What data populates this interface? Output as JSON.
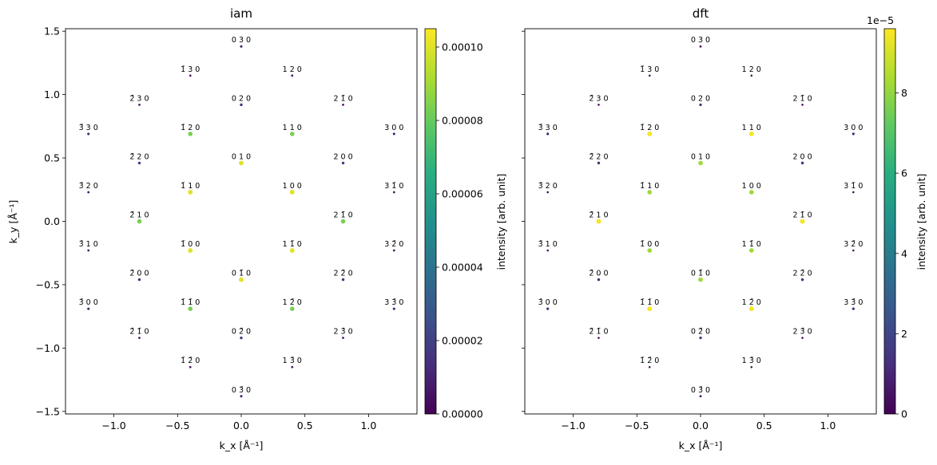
{
  "panels": [
    {
      "title": "iam",
      "ylabel": "k_y [Å⁻¹]",
      "show_y_ticklabels": true
    },
    {
      "title": "dft",
      "ylabel": "",
      "show_y_ticklabels": false
    }
  ],
  "xlabel": "k_x [Å⁻¹]",
  "colorbars": [
    {
      "label": "intensity [arb. unit]",
      "ticks": [
        "0.00000",
        "0.00002",
        "0.00004",
        "0.00006",
        "0.00008",
        "0.00010"
      ],
      "tick_values": [
        0,
        2e-05,
        4e-05,
        6e-05,
        8e-05,
        0.0001
      ],
      "vmin": 0,
      "vmax": 0.000105,
      "offset_text": ""
    },
    {
      "label": "intensity [arb. unit]",
      "ticks": [
        "0",
        "2",
        "4",
        "6",
        "8"
      ],
      "tick_values": [
        0,
        2,
        4,
        6,
        8
      ],
      "vmin": 0,
      "vmax": 9.6,
      "offset_text": "1e−5"
    }
  ],
  "chart_data": [
    {
      "type": "scatter",
      "title": "iam",
      "xlabel": "k_x [Å⁻¹]",
      "ylabel": "k_y [Å⁻¹]",
      "xlim": [
        -1.38,
        1.38
      ],
      "ylim": [
        -1.52,
        1.52
      ],
      "xticks": [
        -1.0,
        -0.5,
        0.0,
        0.5,
        1.0
      ],
      "yticks": [
        -1.5,
        -1.0,
        -0.5,
        0.0,
        0.5,
        1.0,
        1.5
      ],
      "colormap": "viridis",
      "points": [
        {
          "x": 0.0,
          "y": 1.38,
          "i": 1e-05,
          "label": "0 3 0"
        },
        {
          "x": -0.4,
          "y": 1.15,
          "i": 5e-06,
          "label": "1̄ 3 0"
        },
        {
          "x": 0.4,
          "y": 1.15,
          "i": 5e-06,
          "label": "1 2 0"
        },
        {
          "x": -0.8,
          "y": 0.92,
          "i": 5e-06,
          "label": "2̄ 3 0"
        },
        {
          "x": 0.0,
          "y": 0.92,
          "i": 1.5e-05,
          "label": "0 2 0"
        },
        {
          "x": 0.8,
          "y": 0.92,
          "i": 5e-06,
          "label": "2 1̄ 0"
        },
        {
          "x": -1.2,
          "y": 0.69,
          "i": 1e-05,
          "label": "3̄ 3 0"
        },
        {
          "x": -0.4,
          "y": 0.69,
          "i": 8.3e-05,
          "label": "1̄ 2 0"
        },
        {
          "x": 0.4,
          "y": 0.69,
          "i": 8.3e-05,
          "label": "1 1 0"
        },
        {
          "x": 1.2,
          "y": 0.69,
          "i": 1e-05,
          "label": "3 0 0"
        },
        {
          "x": -0.8,
          "y": 0.46,
          "i": 1.5e-05,
          "label": "2̄ 2 0"
        },
        {
          "x": 0.0,
          "y": 0.46,
          "i": 0.0001,
          "label": "0 1 0"
        },
        {
          "x": 0.8,
          "y": 0.46,
          "i": 1.5e-05,
          "label": "2 0 0"
        },
        {
          "x": -1.2,
          "y": 0.23,
          "i": 5e-06,
          "label": "3̄ 2 0"
        },
        {
          "x": -0.4,
          "y": 0.23,
          "i": 0.0001,
          "label": "1̄ 1 0"
        },
        {
          "x": 0.4,
          "y": 0.23,
          "i": 0.0001,
          "label": "1 0 0"
        },
        {
          "x": 1.2,
          "y": 0.23,
          "i": 5e-06,
          "label": "3 1̄ 0"
        },
        {
          "x": -0.8,
          "y": 0.0,
          "i": 8.3e-05,
          "label": "2̄ 1 0"
        },
        {
          "x": 0.8,
          "y": 0.0,
          "i": 8.3e-05,
          "label": "2 1̄ 0"
        },
        {
          "x": -1.2,
          "y": -0.23,
          "i": 5e-06,
          "label": "3̄ 1 0"
        },
        {
          "x": -0.4,
          "y": -0.23,
          "i": 0.0001,
          "label": "1̄ 0 0"
        },
        {
          "x": 0.4,
          "y": -0.23,
          "i": 0.0001,
          "label": "1 1̄ 0"
        },
        {
          "x": 1.2,
          "y": -0.23,
          "i": 5e-06,
          "label": "3 2̄ 0"
        },
        {
          "x": -0.8,
          "y": -0.46,
          "i": 1.5e-05,
          "label": "2̄ 0 0"
        },
        {
          "x": 0.0,
          "y": -0.46,
          "i": 0.0001,
          "label": "0 1̄ 0"
        },
        {
          "x": 0.8,
          "y": -0.46,
          "i": 1.5e-05,
          "label": "2 2̄ 0"
        },
        {
          "x": -1.2,
          "y": -0.69,
          "i": 1e-05,
          "label": "3̄ 0 0"
        },
        {
          "x": -0.4,
          "y": -0.69,
          "i": 8.3e-05,
          "label": "1̄ 1̄ 0"
        },
        {
          "x": 0.4,
          "y": -0.69,
          "i": 8.3e-05,
          "label": "1 2̄ 0"
        },
        {
          "x": 1.2,
          "y": -0.69,
          "i": 1e-05,
          "label": "3 3̄ 0"
        },
        {
          "x": -0.8,
          "y": -0.92,
          "i": 5e-06,
          "label": "2̄ 1̄ 0"
        },
        {
          "x": 0.0,
          "y": -0.92,
          "i": 1.5e-05,
          "label": "0 2̄ 0"
        },
        {
          "x": 0.8,
          "y": -0.92,
          "i": 5e-06,
          "label": "2 3̄ 0"
        },
        {
          "x": -0.4,
          "y": -1.15,
          "i": 5e-06,
          "label": "1̄ 2̄ 0"
        },
        {
          "x": 0.4,
          "y": -1.15,
          "i": 5e-06,
          "label": "1 3̄ 0"
        },
        {
          "x": 0.0,
          "y": -1.38,
          "i": 1e-05,
          "label": "0 3̄ 0"
        }
      ]
    },
    {
      "type": "scatter",
      "title": "dft",
      "xlabel": "k_x [Å⁻¹]",
      "ylabel": "",
      "xlim": [
        -1.38,
        1.38
      ],
      "ylim": [
        -1.52,
        1.52
      ],
      "xticks": [
        -1.0,
        -0.5,
        0.0,
        0.5,
        1.0
      ],
      "yticks": [
        -1.5,
        -1.0,
        -0.5,
        0.0,
        0.5,
        1.0,
        1.5
      ],
      "colormap": "viridis",
      "intensity_scale": "1e-5",
      "points": [
        {
          "x": 0.0,
          "y": 1.38,
          "i": 0.6,
          "label": "0 3 0"
        },
        {
          "x": -0.4,
          "y": 1.15,
          "i": 0.3,
          "label": "1̄ 3 0"
        },
        {
          "x": 0.4,
          "y": 1.15,
          "i": 0.3,
          "label": "1 2 0"
        },
        {
          "x": -0.8,
          "y": 0.92,
          "i": 0.3,
          "label": "2̄ 3 0"
        },
        {
          "x": 0.0,
          "y": 0.92,
          "i": 1.2,
          "label": "0 2 0"
        },
        {
          "x": 0.8,
          "y": 0.92,
          "i": 0.3,
          "label": "2 1̄ 0"
        },
        {
          "x": -1.2,
          "y": 0.69,
          "i": 1.0,
          "label": "3̄ 3 0"
        },
        {
          "x": -0.4,
          "y": 0.69,
          "i": 9.5,
          "label": "1̄ 2 0"
        },
        {
          "x": 0.4,
          "y": 0.69,
          "i": 9.5,
          "label": "1 1 0"
        },
        {
          "x": 1.2,
          "y": 0.69,
          "i": 1.0,
          "label": "3 0 0"
        },
        {
          "x": -0.8,
          "y": 0.46,
          "i": 1.5,
          "label": "2̄ 2 0"
        },
        {
          "x": 0.0,
          "y": 0.46,
          "i": 8.2,
          "label": "0 1 0"
        },
        {
          "x": 0.8,
          "y": 0.46,
          "i": 1.5,
          "label": "2 0 0"
        },
        {
          "x": -1.2,
          "y": 0.23,
          "i": 0.3,
          "label": "3̄ 2 0"
        },
        {
          "x": -0.4,
          "y": 0.23,
          "i": 8.2,
          "label": "1̄ 1 0"
        },
        {
          "x": 0.4,
          "y": 0.23,
          "i": 8.2,
          "label": "1 0 0"
        },
        {
          "x": 1.2,
          "y": 0.23,
          "i": 0.3,
          "label": "3 1̄ 0"
        },
        {
          "x": -0.8,
          "y": 0.0,
          "i": 9.5,
          "label": "2̄ 1 0"
        },
        {
          "x": 0.8,
          "y": 0.0,
          "i": 9.5,
          "label": "2 1̄ 0"
        },
        {
          "x": -1.2,
          "y": -0.23,
          "i": 0.3,
          "label": "3̄ 1 0"
        },
        {
          "x": -0.4,
          "y": -0.23,
          "i": 8.2,
          "label": "1̄ 0 0"
        },
        {
          "x": 0.4,
          "y": -0.23,
          "i": 8.2,
          "label": "1 1̄ 0"
        },
        {
          "x": 1.2,
          "y": -0.23,
          "i": 0.3,
          "label": "3 2̄ 0"
        },
        {
          "x": -0.8,
          "y": -0.46,
          "i": 1.5,
          "label": "2̄ 0 0"
        },
        {
          "x": 0.0,
          "y": -0.46,
          "i": 8.2,
          "label": "0 1̄ 0"
        },
        {
          "x": 0.8,
          "y": -0.46,
          "i": 1.5,
          "label": "2 2̄ 0"
        },
        {
          "x": -1.2,
          "y": -0.69,
          "i": 1.0,
          "label": "3̄ 0 0"
        },
        {
          "x": -0.4,
          "y": -0.69,
          "i": 9.5,
          "label": "1̄ 1̄ 0"
        },
        {
          "x": 0.4,
          "y": -0.69,
          "i": 9.5,
          "label": "1 2̄ 0"
        },
        {
          "x": 1.2,
          "y": -0.69,
          "i": 1.0,
          "label": "3 3̄ 0"
        },
        {
          "x": -0.8,
          "y": -0.92,
          "i": 0.3,
          "label": "2̄ 1̄ 0"
        },
        {
          "x": 0.0,
          "y": -0.92,
          "i": 1.2,
          "label": "0 2̄ 0"
        },
        {
          "x": 0.8,
          "y": -0.92,
          "i": 0.3,
          "label": "2 3̄ 0"
        },
        {
          "x": -0.4,
          "y": -1.15,
          "i": 0.3,
          "label": "1̄ 2̄ 0"
        },
        {
          "x": 0.4,
          "y": -1.15,
          "i": 0.3,
          "label": "1 3̄ 0"
        },
        {
          "x": 0.0,
          "y": -1.38,
          "i": 0.6,
          "label": "0 3̄ 0"
        }
      ]
    }
  ]
}
